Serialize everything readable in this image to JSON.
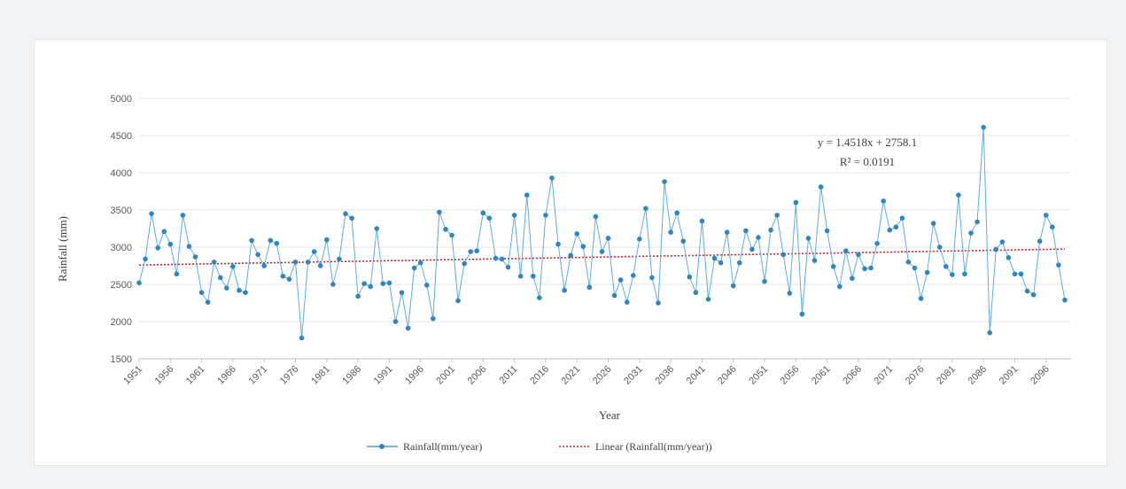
{
  "chart_data": {
    "type": "line",
    "title": "",
    "xlabel": "Year",
    "ylabel": "Rainfall (mm)",
    "xlim": [
      1951,
      2100
    ],
    "ylim": [
      1500,
      5000
    ],
    "yticks": [
      1500,
      2000,
      2500,
      3000,
      3500,
      4000,
      4500,
      5000
    ],
    "xticks": [
      "1951",
      "1956",
      "1961",
      "1966",
      "1971",
      "1976",
      "1981",
      "1986",
      "1991",
      "1996",
      "2001",
      "2006",
      "2011",
      "2016",
      "2021",
      "2026",
      "2031",
      "2036",
      "2041",
      "2046",
      "2051",
      "2056",
      "2061",
      "2066",
      "2071",
      "2076",
      "2081",
      "2086",
      "2091",
      "2096"
    ],
    "grid": true,
    "legend_position": "bottom",
    "series": [
      {
        "name": "Rainfall(mm/year)",
        "color": "#2e86c1",
        "marker": "circle",
        "x_start": 1951,
        "x_step": 1,
        "values": [
          2520,
          2840,
          3450,
          2990,
          3210,
          3040,
          2640,
          3430,
          3010,
          2870,
          2390,
          2260,
          2800,
          2590,
          2450,
          2740,
          2420,
          2390,
          3090,
          2900,
          2750,
          3090,
          3050,
          2610,
          2570,
          2800,
          1780,
          2800,
          2940,
          2750,
          3100,
          2500,
          2840,
          3450,
          3390,
          2340,
          2510,
          2470,
          3250,
          2510,
          2520,
          2000,
          2390,
          1910,
          2720,
          2790,
          2490,
          2040,
          3470,
          3240,
          3160,
          2280,
          2780,
          2940,
          2950,
          3460,
          3390,
          2850,
          2840,
          2730,
          3430,
          2610,
          3700,
          2610,
          2320,
          3430,
          3930,
          3040,
          2420,
          2890,
          3180,
          3010,
          2460,
          3410,
          2940,
          3120,
          2350,
          2560,
          2260,
          2620,
          3110,
          3520,
          2590,
          2250,
          3880,
          3200,
          3460,
          3080,
          2600,
          2390,
          3350,
          2300,
          2850,
          2790,
          3200,
          2480,
          2790,
          3220,
          2970,
          3130,
          2540,
          3230,
          3430,
          2900,
          2380,
          3600,
          2100,
          3120,
          2820,
          3810,
          3220,
          2740,
          2470,
          2950,
          2580,
          2900,
          2710,
          2720,
          3050,
          3620,
          3230,
          3270,
          3390,
          2800,
          2720,
          2310,
          2660,
          3320,
          3000,
          2740,
          2630,
          3700,
          2640,
          3190,
          3340,
          4610,
          1850,
          2970,
          3070,
          2860,
          2640,
          2640,
          2410,
          2360,
          3080,
          3430,
          3270,
          2760,
          2290
        ]
      },
      {
        "name": "Linear (Rainfall(mm/year))",
        "color": "#e8202a",
        "style": "dotted",
        "type": "trendline",
        "slope": 1.4518,
        "intercept": 2758.1
      }
    ],
    "annotations": {
      "equation": "y = 1.4518x + 2758.1",
      "r_squared": "R² = 0.0191"
    }
  }
}
